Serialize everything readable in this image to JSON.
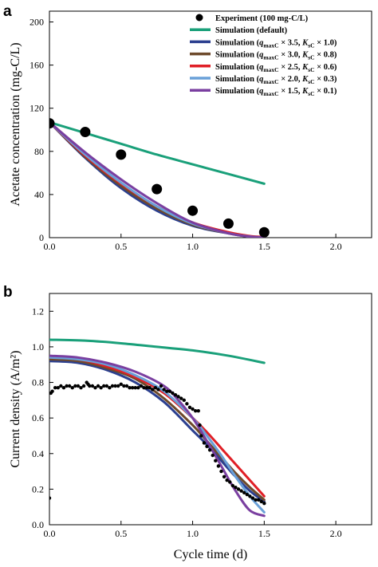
{
  "chart_data": [
    {
      "type": "line",
      "panel_label": "a",
      "ylabel": "Acetate concentration (mg-C/L)",
      "xlabel": "",
      "xlim": [
        0,
        2.25
      ],
      "ylim": [
        0,
        210
      ],
      "xticks": [
        "0.0",
        "0.5",
        "1.0",
        "1.5",
        "2.0"
      ],
      "xtick_values": [
        0,
        0.5,
        1.0,
        1.5,
        2.0
      ],
      "yticks": [
        "0",
        "40",
        "80",
        "120",
        "160",
        "200"
      ],
      "ytick_values": [
        0,
        40,
        80,
        120,
        160,
        200
      ],
      "grid": false,
      "legend_position": "top-right",
      "legend": [
        {
          "label": "Experiment (100 mg-C/L)",
          "kind": "marker",
          "color": "#000000"
        },
        {
          "label": "Simulation (default)",
          "kind": "line",
          "color": "#1aa07a"
        },
        {
          "label": "Simulation (qmaxC × 3.5, KsC × 1.0)",
          "kind": "line",
          "color": "#2b3f8f"
        },
        {
          "label": "Simulation (qmaxC × 3.0, KsC × 0.8)",
          "kind": "line",
          "color": "#6e4a2b"
        },
        {
          "label": "Simulation (qmaxC × 2.5, KsC × 0.6)",
          "kind": "line",
          "color": "#e01f26"
        },
        {
          "label": "Simulation (qmaxC × 2.0, KsC × 0.3)",
          "kind": "line",
          "color": "#6aa0d8"
        },
        {
          "label": "Simulation (qmaxC × 1.5, KsC × 0.1)",
          "kind": "line",
          "color": "#7a3fa0"
        }
      ],
      "scatter": {
        "name": "Experiment (100 mg-C/L)",
        "color": "#000000",
        "x": [
          0,
          0.25,
          0.5,
          0.75,
          1.0,
          1.25,
          1.5
        ],
        "y": [
          106,
          98,
          77,
          45,
          25,
          13,
          5
        ]
      },
      "series": [
        {
          "name": "Simulation (default)",
          "color": "#1aa07a",
          "x": [
            0,
            0.25,
            0.5,
            0.75,
            1.0,
            1.25,
            1.5
          ],
          "y": [
            107,
            97,
            87,
            77,
            68,
            59,
            50
          ]
        },
        {
          "name": "Simulation (qmaxC × 3.5, KsC × 1.0)",
          "color": "#2b3f8f",
          "x": [
            0,
            0.25,
            0.5,
            0.75,
            1.0,
            1.25,
            1.4,
            1.5
          ],
          "y": [
            107,
            74,
            46,
            25,
            11,
            4,
            1,
            0
          ]
        },
        {
          "name": "Simulation (qmaxC × 3.0, KsC × 0.8)",
          "color": "#6e4a2b",
          "x": [
            0,
            0.25,
            0.5,
            0.75,
            1.0,
            1.25,
            1.4,
            1.5
          ],
          "y": [
            107,
            75,
            48,
            27,
            12,
            4,
            1,
            0
          ]
        },
        {
          "name": "Simulation (qmaxC × 2.5, KsC × 0.6)",
          "color": "#e01f26",
          "x": [
            0,
            0.25,
            0.5,
            0.75,
            1.0,
            1.25,
            1.4,
            1.5
          ],
          "y": [
            107,
            76,
            50,
            29,
            14,
            5,
            1.5,
            0.5
          ]
        },
        {
          "name": "Simulation (qmaxC × 2.0, KsC × 0.3)",
          "color": "#6aa0d8",
          "x": [
            0,
            0.25,
            0.5,
            0.75,
            1.0,
            1.25,
            1.4,
            1.5
          ],
          "y": [
            107,
            77,
            51,
            29,
            13,
            4,
            1,
            0
          ]
        },
        {
          "name": "Simulation (qmaxC × 1.5, KsC × 0.1)",
          "color": "#7a3fa0",
          "x": [
            0,
            0.25,
            0.5,
            0.75,
            1.0,
            1.25,
            1.4,
            1.5
          ],
          "y": [
            107,
            79,
            54,
            32,
            14,
            4,
            1,
            0
          ]
        }
      ]
    },
    {
      "type": "line",
      "panel_label": "b",
      "ylabel": "Current density (A/m²)",
      "xlabel": "Cycle time (d)",
      "xlim": [
        0,
        2.25
      ],
      "ylim": [
        0,
        1.3
      ],
      "xticks": [
        "0.0",
        "0.5",
        "1.0",
        "1.5",
        "2.0"
      ],
      "xtick_values": [
        0,
        0.5,
        1.0,
        1.5,
        2.0
      ],
      "yticks": [
        "0.0",
        "0.2",
        "0.4",
        "0.6",
        "0.8",
        "1.0",
        "1.2"
      ],
      "ytick_values": [
        0,
        0.2,
        0.4,
        0.6,
        0.8,
        1.0,
        1.2
      ],
      "grid": false,
      "scatter": {
        "name": "Experiment",
        "color": "#000000",
        "x": [
          0.0,
          0.01,
          0.02,
          0.04,
          0.06,
          0.08,
          0.1,
          0.12,
          0.14,
          0.16,
          0.18,
          0.2,
          0.22,
          0.24,
          0.26,
          0.27,
          0.28,
          0.3,
          0.32,
          0.34,
          0.36,
          0.38,
          0.4,
          0.42,
          0.44,
          0.46,
          0.48,
          0.5,
          0.52,
          0.54,
          0.56,
          0.58,
          0.6,
          0.62,
          0.64,
          0.66,
          0.68,
          0.7,
          0.72,
          0.74,
          0.76,
          0.78,
          0.8,
          0.82,
          0.84,
          0.86,
          0.88,
          0.9,
          0.92,
          0.94,
          0.96,
          0.98,
          1.0,
          1.02,
          1.04,
          1.05,
          1.06,
          1.08,
          1.1,
          1.12,
          1.14,
          1.16,
          1.18,
          1.2,
          1.22,
          1.24,
          1.26,
          1.28,
          1.3,
          1.32,
          1.34,
          1.36,
          1.38,
          1.4,
          1.42,
          1.44,
          1.46,
          1.48,
          1.5
        ],
        "y": [
          0.15,
          0.74,
          0.75,
          0.77,
          0.77,
          0.78,
          0.77,
          0.78,
          0.78,
          0.77,
          0.78,
          0.78,
          0.77,
          0.78,
          0.8,
          0.79,
          0.78,
          0.78,
          0.77,
          0.78,
          0.77,
          0.78,
          0.78,
          0.77,
          0.78,
          0.78,
          0.78,
          0.79,
          0.78,
          0.78,
          0.77,
          0.77,
          0.77,
          0.77,
          0.78,
          0.77,
          0.77,
          0.77,
          0.76,
          0.77,
          0.76,
          0.78,
          0.76,
          0.75,
          0.75,
          0.74,
          0.73,
          0.72,
          0.71,
          0.7,
          0.68,
          0.66,
          0.65,
          0.64,
          0.64,
          0.56,
          0.5,
          0.46,
          0.44,
          0.42,
          0.39,
          0.36,
          0.33,
          0.3,
          0.27,
          0.25,
          0.24,
          0.22,
          0.21,
          0.2,
          0.19,
          0.18,
          0.17,
          0.16,
          0.15,
          0.14,
          0.14,
          0.13,
          0.12
        ]
      },
      "series": [
        {
          "name": "Simulation (default)",
          "color": "#1aa07a",
          "x": [
            0,
            0.25,
            0.5,
            0.75,
            1.0,
            1.25,
            1.5
          ],
          "y": [
            1.04,
            1.035,
            1.02,
            1.0,
            0.98,
            0.95,
            0.91
          ]
        },
        {
          "name": "Simulation (qmaxC × 3.5, KsC × 1.0)",
          "color": "#2b3f8f",
          "x": [
            0,
            0.2,
            0.4,
            0.6,
            0.8,
            1.0,
            1.1,
            1.2,
            1.3,
            1.4,
            1.5
          ],
          "y": [
            0.92,
            0.91,
            0.87,
            0.8,
            0.69,
            0.53,
            0.45,
            0.36,
            0.27,
            0.19,
            0.13
          ]
        },
        {
          "name": "Simulation (qmaxC × 3.0, KsC × 0.8)",
          "color": "#6e4a2b",
          "x": [
            0,
            0.2,
            0.4,
            0.6,
            0.8,
            1.0,
            1.1,
            1.2,
            1.3,
            1.4,
            1.5
          ],
          "y": [
            0.93,
            0.92,
            0.88,
            0.82,
            0.71,
            0.56,
            0.47,
            0.38,
            0.29,
            0.21,
            0.14
          ]
        },
        {
          "name": "Simulation (qmaxC × 2.5, KsC × 0.6)",
          "color": "#e01f26",
          "x": [
            0,
            0.2,
            0.4,
            0.6,
            0.8,
            1.0,
            1.1,
            1.2,
            1.3,
            1.4,
            1.5
          ],
          "y": [
            0.94,
            0.93,
            0.89,
            0.83,
            0.74,
            0.6,
            0.52,
            0.43,
            0.34,
            0.25,
            0.16
          ]
        },
        {
          "name": "Simulation (qmaxC × 2.0, KsC × 0.3)",
          "color": "#6aa0d8",
          "x": [
            0,
            0.2,
            0.4,
            0.6,
            0.8,
            1.0,
            1.1,
            1.2,
            1.3,
            1.4,
            1.5
          ],
          "y": [
            0.94,
            0.93,
            0.9,
            0.84,
            0.75,
            0.6,
            0.5,
            0.39,
            0.27,
            0.16,
            0.07
          ]
        },
        {
          "name": "Simulation (qmaxC × 1.5, KsC × 0.1)",
          "color": "#7a3fa0",
          "x": [
            0,
            0.2,
            0.4,
            0.6,
            0.8,
            0.9,
            1.0,
            1.1,
            1.2,
            1.3,
            1.4,
            1.5
          ],
          "y": [
            0.95,
            0.94,
            0.91,
            0.86,
            0.78,
            0.7,
            0.6,
            0.47,
            0.33,
            0.19,
            0.08,
            0.05
          ]
        }
      ]
    }
  ]
}
